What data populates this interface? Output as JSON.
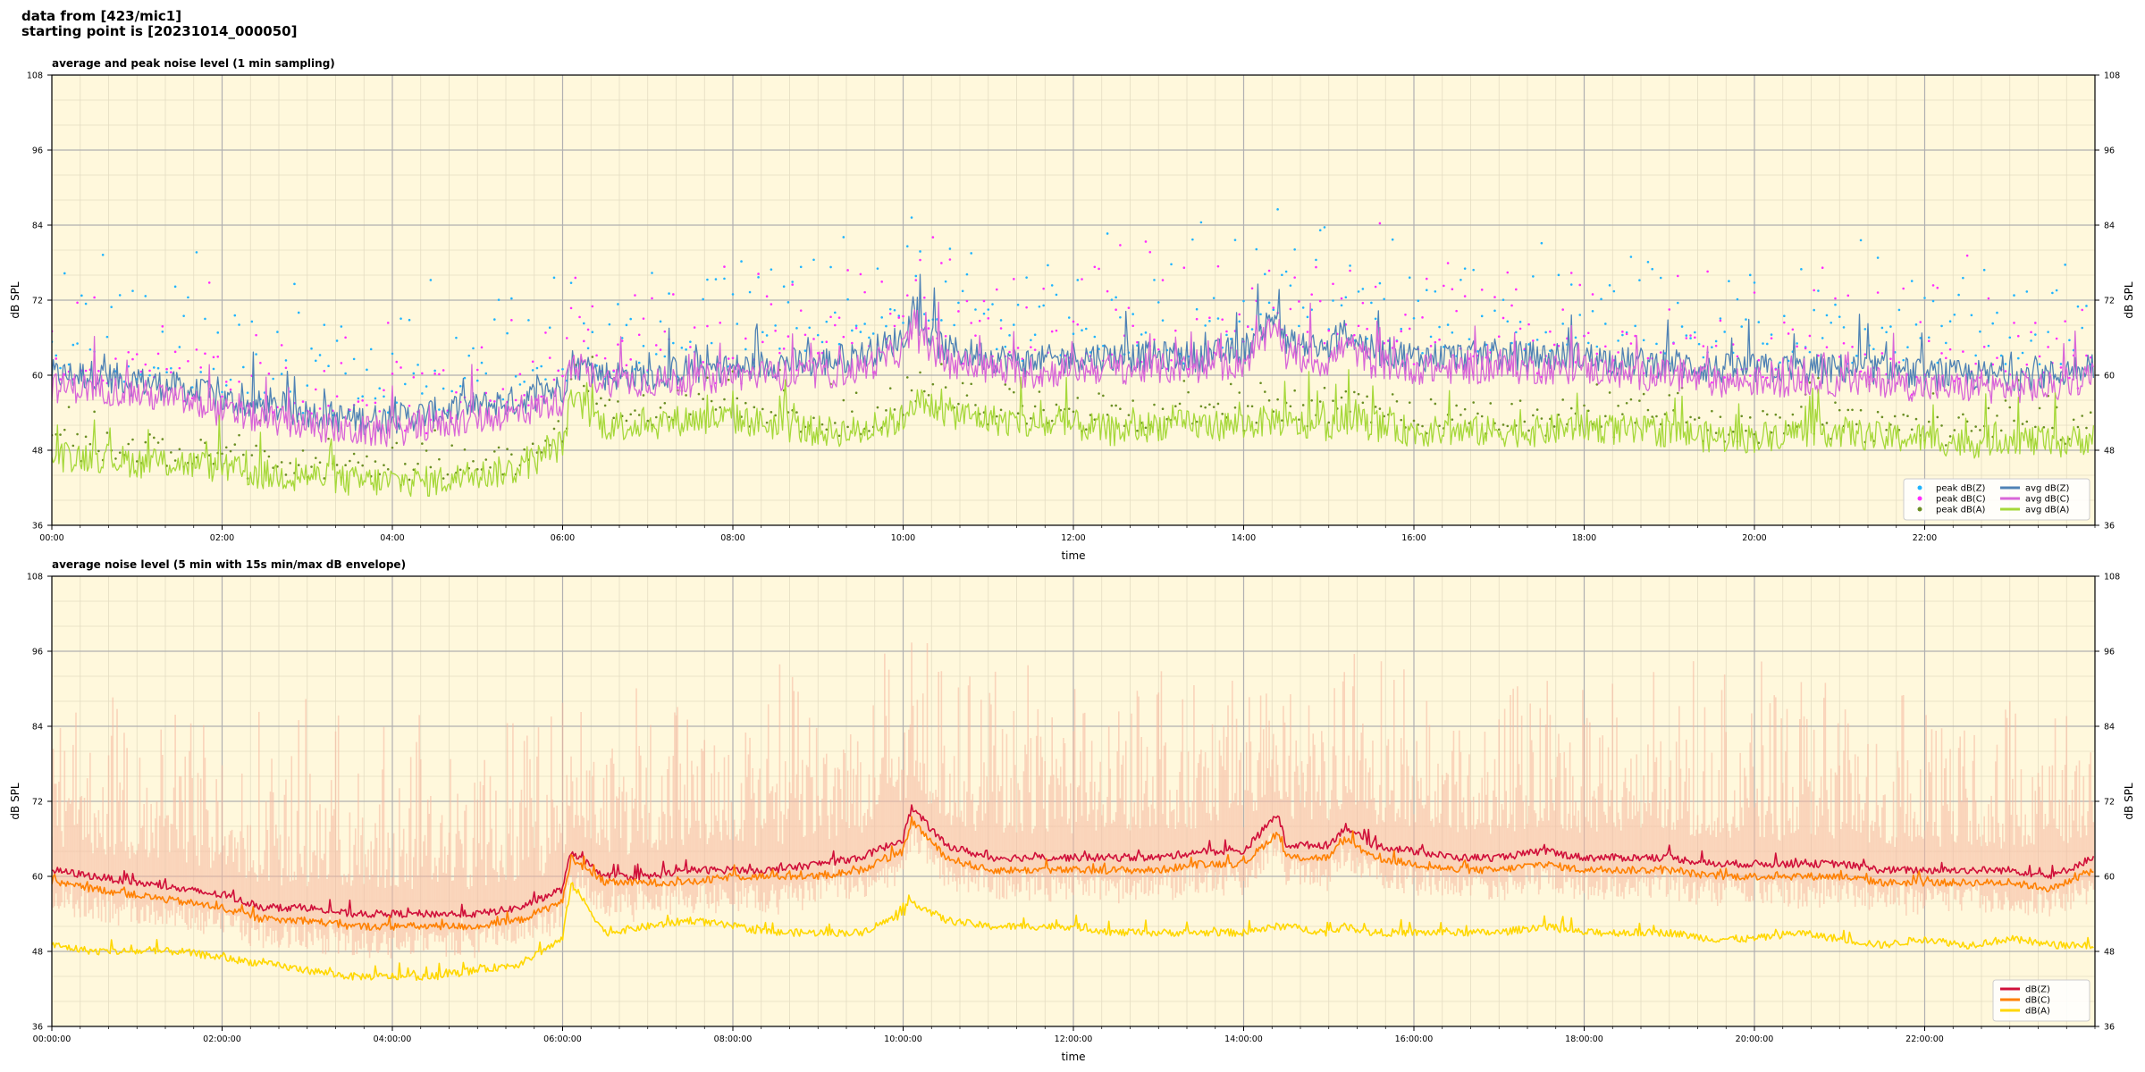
{
  "page": {
    "title_line1": "data from [423/mic1]",
    "title_line2": "starting point is [20231014_000050]"
  },
  "colors": {
    "background": "#fff8dc",
    "grid_major": "#b0b0b0",
    "grid_minor": "#e4dcc2",
    "peak_z": "#1fb4ff",
    "peak_c": "#ff2bff",
    "peak_a": "#6b8e23",
    "avg_z": "#4f82b5",
    "avg_c": "#d866d8",
    "avg_a": "#a6d83a",
    "z": "#d0103a",
    "c": "#ff8000",
    "a": "#ffd700",
    "envelope": "#f6b8a0"
  },
  "chart_data": [
    {
      "type": "line",
      "title": "average and peak noise level (1 min sampling)",
      "xlabel": "time",
      "ylabel": "dB SPL",
      "ylim": [
        36,
        108
      ],
      "yticks": [
        36,
        48,
        60,
        72,
        84,
        96,
        108
      ],
      "xlim_hours": [
        0,
        24
      ],
      "xticks": [
        {
          "hour": 0,
          "label": "00:00"
        },
        {
          "hour": 2,
          "label": "02:00"
        },
        {
          "hour": 4,
          "label": "04:00"
        },
        {
          "hour": 6,
          "label": "06:00"
        },
        {
          "hour": 8,
          "label": "08:00"
        },
        {
          "hour": 10,
          "label": "10:00"
        },
        {
          "hour": 12,
          "label": "12:00"
        },
        {
          "hour": 14,
          "label": "14:00"
        },
        {
          "hour": 16,
          "label": "16:00"
        },
        {
          "hour": 18,
          "label": "18:00"
        },
        {
          "hour": 20,
          "label": "20:00"
        },
        {
          "hour": 22,
          "label": "22:00"
        }
      ],
      "grid": true,
      "legend_position": "bottom-right",
      "legend_columns": 2,
      "x_hours": [
        0,
        0.5,
        1,
        1.5,
        2,
        2.5,
        3,
        3.5,
        4,
        4.5,
        5,
        5.5,
        6,
        6.1,
        6.5,
        7,
        7.5,
        8,
        8.5,
        9,
        9.5,
        10,
        10.1,
        10.5,
        11,
        11.5,
        12,
        12.5,
        13,
        13.5,
        14,
        14.4,
        14.5,
        15,
        15.2,
        15.5,
        16,
        16.5,
        17,
        17.5,
        18,
        18.5,
        19,
        19.5,
        20,
        20.5,
        21,
        21.5,
        22,
        22.5,
        23,
        23.5,
        23.98
      ],
      "series": [
        {
          "name": "peak dB(Z)",
          "kind": "scatter",
          "color_key": "peak_z",
          "offset_from": "avg dB(Z)",
          "spread": [
            1,
            22
          ]
        },
        {
          "name": "peak dB(C)",
          "kind": "scatter",
          "color_key": "peak_c",
          "offset_from": "avg dB(C)",
          "spread": [
            1,
            20
          ]
        },
        {
          "name": "peak dB(A)",
          "kind": "scatter",
          "color_key": "peak_a",
          "offset_from": "avg dB(A)",
          "spread": [
            1,
            6
          ]
        },
        {
          "name": "avg dB(Z)",
          "kind": "line",
          "color_key": "avg_z",
          "values": [
            60,
            60,
            59,
            58,
            56,
            55,
            54,
            53,
            53,
            54,
            55,
            56,
            58,
            62,
            60,
            60,
            61,
            61,
            62,
            62,
            63,
            66,
            69,
            64,
            63,
            62,
            63,
            63,
            63,
            63,
            64,
            70,
            65,
            64,
            67,
            64,
            63,
            63,
            63,
            63,
            63,
            62,
            62,
            61,
            61,
            61,
            61,
            61,
            60,
            60,
            60,
            60,
            62
          ]
        },
        {
          "name": "avg dB(C)",
          "kind": "line",
          "color_key": "avg_c",
          "values": [
            58,
            58,
            57,
            56,
            54,
            53,
            52,
            51,
            51,
            52,
            53,
            54,
            56,
            61,
            59,
            59,
            59,
            60,
            60,
            60,
            61,
            64,
            67,
            62,
            61,
            60,
            61,
            61,
            61,
            61,
            62,
            68,
            63,
            62,
            65,
            62,
            61,
            61,
            61,
            61,
            61,
            60,
            60,
            59,
            59,
            59,
            59,
            59,
            58,
            58,
            58,
            58,
            60
          ]
        },
        {
          "name": "avg dB(A)",
          "kind": "line",
          "color_key": "avg_a",
          "values": [
            47,
            47,
            46,
            46,
            45,
            44,
            44,
            43,
            43,
            43,
            44,
            45,
            49,
            56,
            52,
            52,
            53,
            53,
            52,
            51,
            51,
            53,
            56,
            54,
            53,
            52,
            52,
            51,
            52,
            52,
            52,
            53,
            52,
            52,
            53,
            52,
            51,
            51,
            51,
            51,
            52,
            51,
            51,
            50,
            50,
            51,
            51,
            50,
            50,
            49,
            50,
            49,
            50
          ]
        }
      ]
    },
    {
      "type": "line",
      "title": "average noise level (5 min with 15s min/max dB envelope)",
      "xlabel": "time",
      "ylabel": "dB SPL",
      "ylim": [
        36,
        108
      ],
      "yticks": [
        36,
        48,
        60,
        72,
        84,
        96,
        108
      ],
      "xlim_hours": [
        0,
        24
      ],
      "xticks": [
        {
          "hour": 0,
          "label": "00:00:00"
        },
        {
          "hour": 2,
          "label": "02:00:00"
        },
        {
          "hour": 4,
          "label": "04:00:00"
        },
        {
          "hour": 6,
          "label": "06:00:00"
        },
        {
          "hour": 8,
          "label": "08:00:00"
        },
        {
          "hour": 10,
          "label": "10:00:00"
        },
        {
          "hour": 12,
          "label": "12:00:00"
        },
        {
          "hour": 14,
          "label": "14:00:00"
        },
        {
          "hour": 16,
          "label": "16:00:00"
        },
        {
          "hour": 18,
          "label": "18:00:00"
        },
        {
          "hour": 20,
          "label": "20:00:00"
        },
        {
          "hour": 22,
          "label": "22:00:00"
        }
      ],
      "grid": true,
      "legend_position": "bottom-right",
      "legend_columns": 1,
      "x_hours": [
        0,
        0.5,
        1,
        1.5,
        2,
        2.5,
        3,
        3.5,
        4,
        4.5,
        5,
        5.5,
        6,
        6.1,
        6.5,
        7,
        7.5,
        8,
        8.5,
        9,
        9.5,
        10,
        10.1,
        10.5,
        11,
        11.5,
        12,
        12.5,
        13,
        13.5,
        14,
        14.4,
        14.5,
        15,
        15.2,
        15.5,
        16,
        16.5,
        17,
        17.5,
        18,
        18.5,
        19,
        19.5,
        20,
        20.5,
        21,
        21.5,
        22,
        22.5,
        23,
        23.5,
        23.98
      ],
      "series": [
        {
          "name": "dB(Z)",
          "kind": "line",
          "color_key": "z",
          "values": [
            61,
            60,
            59,
            58,
            57,
            55,
            55,
            54,
            54,
            54,
            54,
            55,
            58,
            64,
            60,
            60,
            61,
            61,
            61,
            62,
            63,
            66,
            71,
            65,
            63,
            63,
            63,
            63,
            63,
            64,
            64,
            70,
            65,
            65,
            68,
            65,
            64,
            63,
            63,
            64,
            63,
            63,
            63,
            62,
            62,
            62,
            62,
            61,
            61,
            61,
            61,
            60,
            63
          ]
        },
        {
          "name": "dB(C)",
          "kind": "line",
          "color_key": "c",
          "values": [
            59,
            58,
            57,
            56,
            55,
            53,
            53,
            52,
            52,
            52,
            52,
            53,
            56,
            63,
            59,
            59,
            59,
            60,
            60,
            60,
            61,
            64,
            69,
            63,
            61,
            61,
            61,
            61,
            61,
            62,
            62,
            67,
            63,
            63,
            66,
            63,
            62,
            61,
            61,
            62,
            61,
            61,
            61,
            60,
            60,
            60,
            60,
            59,
            59,
            59,
            59,
            58,
            61
          ]
        },
        {
          "name": "dB(A)",
          "kind": "line",
          "color_key": "a",
          "values": [
            49,
            48,
            48,
            48,
            47,
            46,
            45,
            44,
            44,
            44,
            45,
            46,
            50,
            59,
            51,
            52,
            53,
            52,
            51,
            51,
            51,
            54,
            56,
            53,
            52,
            52,
            52,
            51,
            51,
            51,
            51,
            52,
            52,
            51,
            52,
            51,
            51,
            51,
            51,
            52,
            51,
            51,
            51,
            50,
            50,
            51,
            50,
            49,
            50,
            49,
            50,
            49,
            49
          ]
        },
        {
          "name": "",
          "kind": "envelope",
          "color_key": "envelope",
          "offset_from": "dB(Z)",
          "spread": [
            -8,
            30
          ]
        }
      ]
    }
  ]
}
